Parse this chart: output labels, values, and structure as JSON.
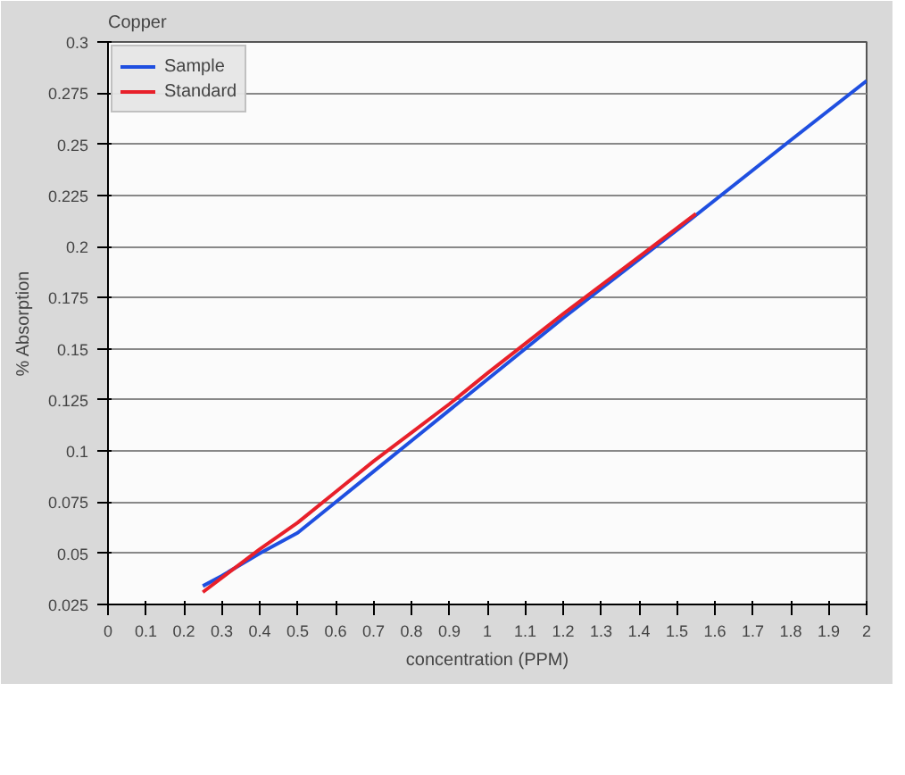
{
  "chart_data": {
    "type": "line",
    "title": "Copper",
    "xlabel": "concentration (PPM)",
    "ylabel": "% Absorption",
    "xlim": [
      0,
      2
    ],
    "xticks": [
      0,
      0.1,
      0.2,
      0.3,
      0.4,
      0.5,
      0.6,
      0.7,
      0.8,
      0.9,
      1,
      1.1,
      1.2,
      1.3,
      1.4,
      1.5,
      1.6,
      1.7,
      1.8,
      1.9,
      2
    ],
    "ylim": [
      0.025,
      0.3
    ],
    "yticks": [
      0.025,
      0.05,
      0.075,
      0.1,
      0.125,
      0.15,
      0.175,
      0.2,
      0.225,
      0.25,
      0.275,
      0.3
    ],
    "grid": "y",
    "legend": "top left",
    "series": [
      {
        "name": "Sample",
        "color": "#1f4fe0",
        "x": [
          0.25,
          0.3,
          0.4,
          0.5,
          0.6,
          0.7,
          0.8,
          0.9,
          1.0,
          1.2,
          1.5,
          1.8,
          2.0
        ],
        "values": [
          0.034,
          0.039,
          0.05,
          0.06,
          0.075,
          0.09,
          0.105,
          0.12,
          0.135,
          0.165,
          0.208,
          0.252,
          0.281
        ]
      },
      {
        "name": "Standard",
        "color": "#e8202a",
        "x": [
          0.25,
          0.3,
          0.4,
          0.5,
          0.6,
          0.7,
          0.8,
          0.9,
          1.0,
          1.2,
          1.4,
          1.55
        ],
        "values": [
          0.031,
          0.038,
          0.052,
          0.065,
          0.08,
          0.095,
          0.109,
          0.123,
          0.138,
          0.167,
          0.195,
          0.216
        ]
      }
    ]
  }
}
